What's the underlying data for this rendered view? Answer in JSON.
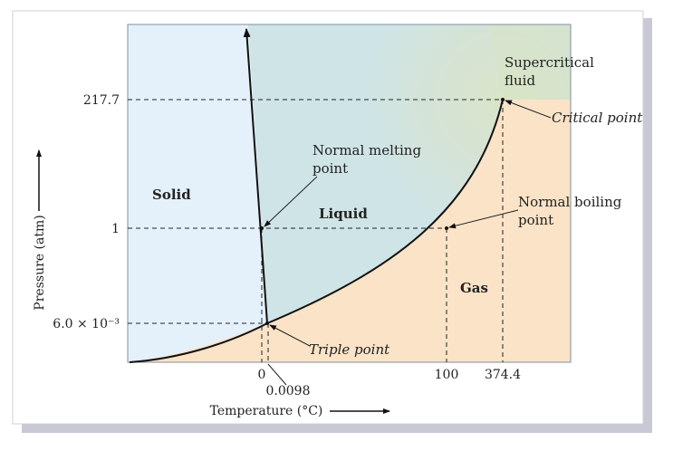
{
  "chart_data": {
    "type": "line",
    "title": "",
    "xlabel": "Temperature (°C)",
    "ylabel": "Pressure (atm)",
    "x_scale": "schematic (not to scale)",
    "y_scale": "schematic (not to scale)",
    "xticks": [
      {
        "value": 0,
        "label": "0"
      },
      {
        "value": 0.0098,
        "label": "0.0098"
      },
      {
        "value": 100,
        "label": "100"
      },
      {
        "value": 374.4,
        "label": "374.4"
      }
    ],
    "yticks": [
      {
        "value": 0.006,
        "label": "6.0 × 10⁻³"
      },
      {
        "value": 1,
        "label": "1"
      },
      {
        "value": 217.7,
        "label": "217.7"
      }
    ],
    "series": [
      {
        "name": "sublimation curve",
        "from": "low-T",
        "to": "triple point"
      },
      {
        "name": "melting curve",
        "from": "triple point",
        "to": "high-P"
      },
      {
        "name": "vaporization curve",
        "from": "triple point",
        "to": "critical point"
      }
    ],
    "regions": {
      "solid": "Solid",
      "liquid": "Liquid",
      "gas": "Gas",
      "supercritical_line1": "Supercritical",
      "supercritical_line2": "fluid"
    },
    "points": {
      "triple": {
        "t": 0.0098,
        "p": 0.006,
        "label": "Triple point"
      },
      "critical": {
        "t": 374.4,
        "p": 217.7,
        "label": "Critical point"
      },
      "normal_melting": {
        "t": 0,
        "p": 1,
        "label_line1": "Normal melting",
        "label_line2": "point"
      },
      "normal_boiling": {
        "t": 100,
        "p": 1,
        "label_line1": "Normal boiling",
        "label_line2": "point"
      }
    },
    "colors": {
      "solid": "#e4f1fb",
      "liquid": "#cfe4e6",
      "gas": "#fae3c7",
      "curve": "#111111",
      "frame": "#7f8f9f",
      "shadow": "#c9c9d6"
    }
  }
}
